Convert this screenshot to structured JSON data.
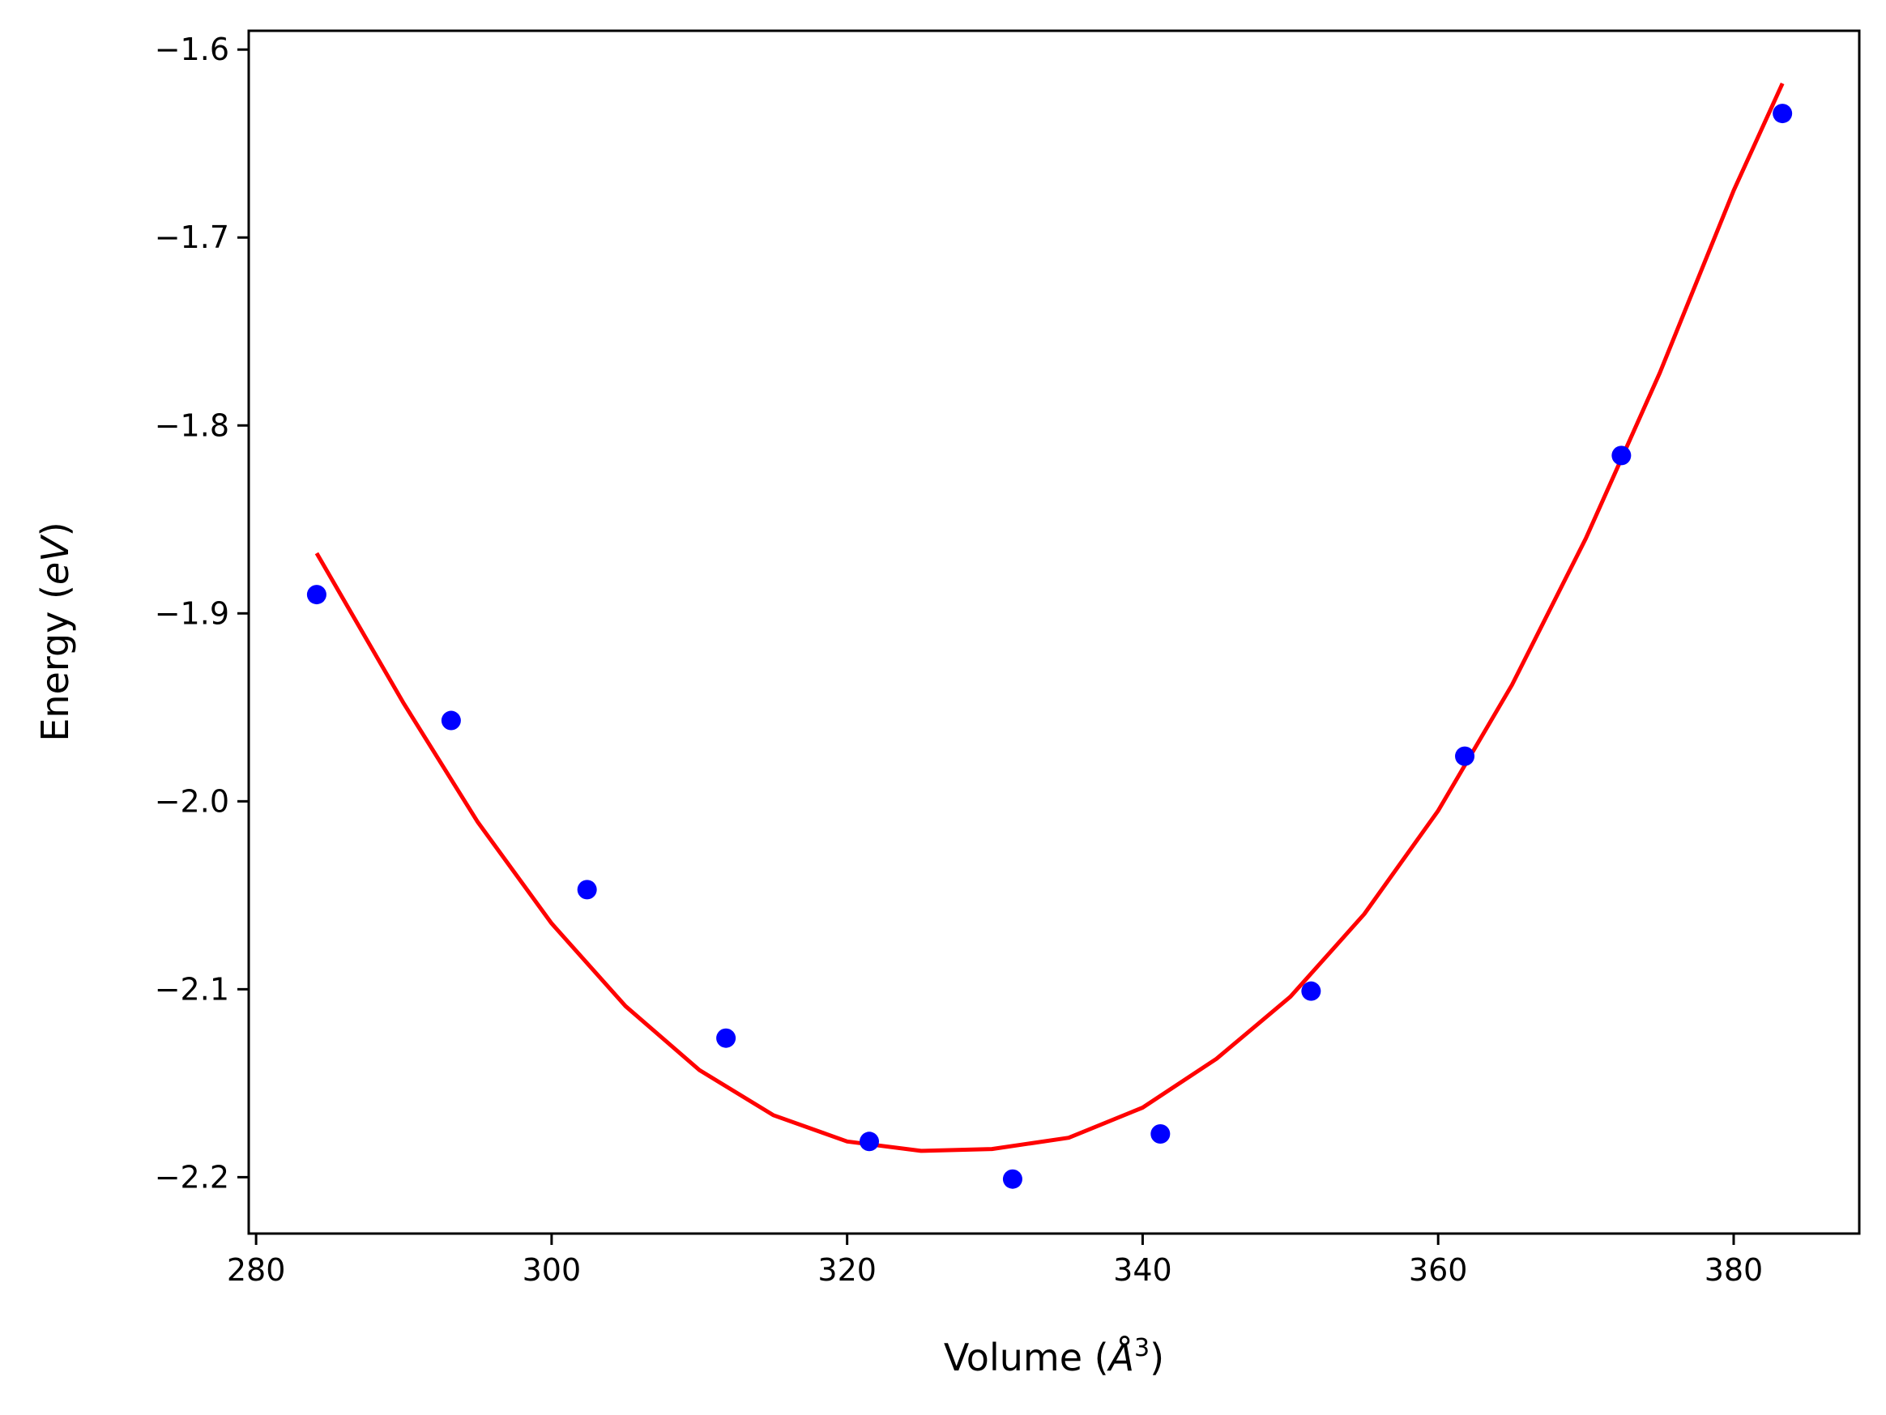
{
  "chart_data": {
    "type": "scatter",
    "xlabel": "Volume (",
    "xlabel_unit": "Å",
    "xlabel_exp": "3",
    "xlabel_close": ")",
    "ylabel": "Energy (",
    "ylabel_unit": "eV",
    "ylabel_close": ")",
    "xlim": [
      279.5,
      388.5
    ],
    "ylim": [
      -2.23,
      -1.59
    ],
    "xticks": [
      280,
      300,
      320,
      340,
      360,
      380
    ],
    "xtick_labels": [
      "280",
      "300",
      "320",
      "340",
      "360",
      "380"
    ],
    "yticks": [
      -2.2,
      -2.1,
      -2.0,
      -1.9,
      -1.8,
      -1.7,
      -1.6
    ],
    "ytick_labels": [
      "−2.2",
      "−2.1",
      "−2.0",
      "−1.9",
      "−1.8",
      "−1.7",
      "−1.6"
    ],
    "grid": false,
    "series": [
      {
        "kind": "points",
        "color": "#0000ff",
        "x": [
          284.1,
          293.2,
          302.4,
          311.8,
          321.5,
          331.2,
          341.2,
          351.4,
          361.8,
          372.4,
          383.3
        ],
        "y": [
          -1.89,
          -1.957,
          -2.047,
          -2.126,
          -2.181,
          -2.201,
          -2.177,
          -2.101,
          -1.976,
          -1.816,
          -1.634
        ]
      },
      {
        "kind": "line",
        "color": "#ff0000",
        "x": [
          284.1,
          290,
          295,
          300,
          305,
          310,
          315,
          320,
          325,
          329.8,
          335,
          340,
          345,
          350,
          355,
          360,
          365,
          370,
          375,
          380,
          383.3
        ],
        "y": [
          -1.868,
          -1.948,
          -2.011,
          -2.065,
          -2.109,
          -2.143,
          -2.167,
          -2.181,
          -2.186,
          -2.185,
          -2.179,
          -2.163,
          -2.137,
          -2.104,
          -2.06,
          -2.005,
          -1.938,
          -1.86,
          -1.772,
          -1.675,
          -1.618
        ]
      }
    ]
  }
}
